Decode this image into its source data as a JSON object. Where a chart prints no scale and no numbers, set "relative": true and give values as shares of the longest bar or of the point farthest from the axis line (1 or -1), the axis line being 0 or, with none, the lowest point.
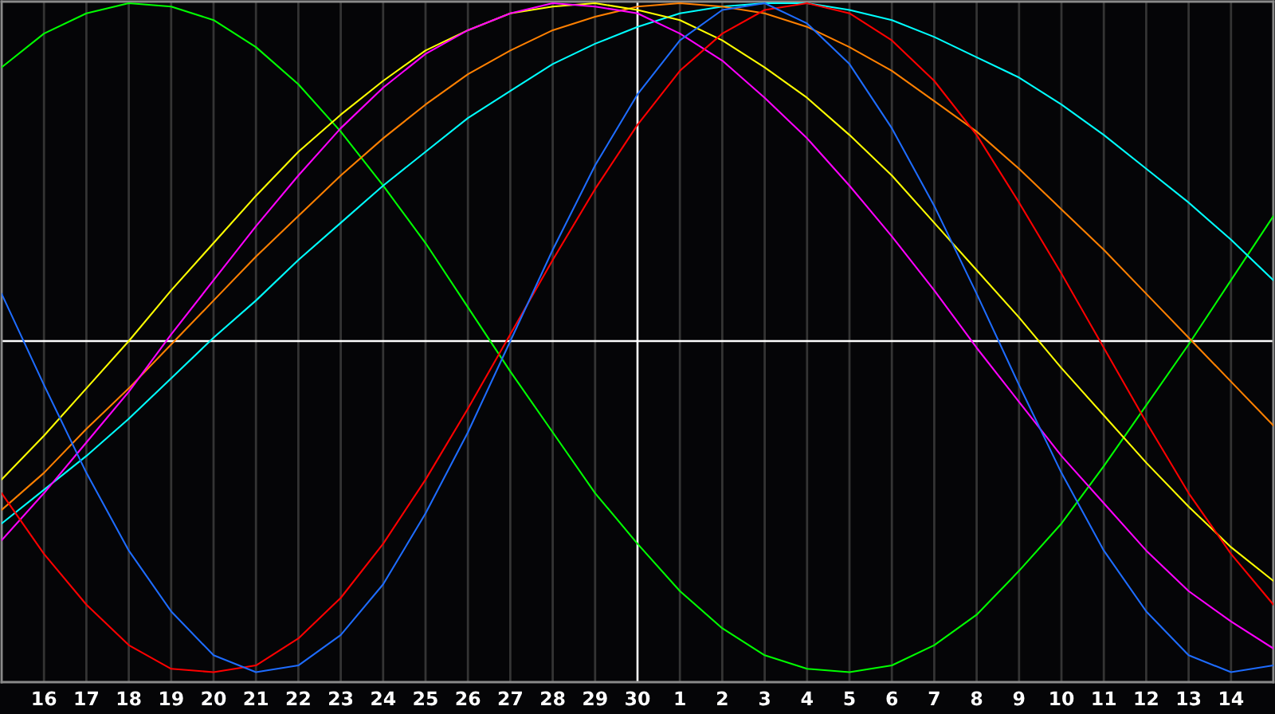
{
  "chart_data": {
    "type": "line",
    "relative": true,
    "grid": "x",
    "categories": [
      null,
      "16",
      "17",
      "18",
      "19",
      "20",
      "21",
      "22",
      "23",
      "24",
      "25",
      "26",
      "27",
      "28",
      "29",
      "30",
      "1",
      "2",
      "3",
      "4",
      "5",
      "6",
      "7",
      "8",
      "9",
      "10",
      "11",
      "12",
      "13",
      "14",
      null
    ],
    "ref_lines": [
      {
        "axis": "y",
        "value": 0,
        "color": "#ffffff"
      },
      {
        "axis": "x",
        "value": "30",
        "color": "#ffffff"
      }
    ],
    "series": [
      {
        "color": "#00ff00",
        "values": [
          0.81,
          0.91,
          0.97,
          1.0,
          0.99,
          0.95,
          0.87,
          0.76,
          0.62,
          0.46,
          0.29,
          0.1,
          -0.09,
          -0.27,
          -0.45,
          -0.6,
          -0.74,
          -0.85,
          -0.93,
          -0.97,
          -0.98,
          -0.96,
          -0.9,
          -0.81,
          -0.68,
          -0.54,
          -0.37,
          -0.19,
          -0.01,
          0.18,
          0.37
        ]
      },
      {
        "color": "#00ffff",
        "values": [
          -0.54,
          -0.44,
          -0.34,
          -0.23,
          -0.11,
          0.01,
          0.12,
          0.24,
          0.35,
          0.46,
          0.56,
          0.66,
          0.74,
          0.82,
          0.88,
          0.93,
          0.97,
          0.99,
          1.0,
          1.0,
          0.98,
          0.95,
          0.9,
          0.84,
          0.78,
          0.7,
          0.61,
          0.51,
          0.41,
          0.3,
          0.18
        ]
      },
      {
        "color": "#ff8000",
        "values": [
          -0.5,
          -0.39,
          -0.26,
          -0.14,
          -0.01,
          0.12,
          0.25,
          0.37,
          0.49,
          0.6,
          0.7,
          0.79,
          0.86,
          0.92,
          0.96,
          0.99,
          1.0,
          0.99,
          0.97,
          0.93,
          0.87,
          0.8,
          0.71,
          0.62,
          0.51,
          0.39,
          0.27,
          0.14,
          0.01,
          -0.12,
          -0.25
        ]
      },
      {
        "color": "#ffff00",
        "values": [
          -0.41,
          -0.28,
          -0.14,
          0.0,
          0.15,
          0.29,
          0.43,
          0.56,
          0.67,
          0.77,
          0.86,
          0.92,
          0.97,
          0.99,
          1.0,
          0.98,
          0.95,
          0.89,
          0.81,
          0.72,
          0.61,
          0.49,
          0.35,
          0.21,
          0.07,
          -0.08,
          -0.22,
          -0.36,
          -0.49,
          -0.61,
          -0.71
        ]
      },
      {
        "color": "#ff00ff",
        "values": [
          -0.59,
          -0.45,
          -0.3,
          -0.15,
          0.02,
          0.18,
          0.34,
          0.49,
          0.63,
          0.75,
          0.85,
          0.92,
          0.97,
          1.0,
          0.99,
          0.97,
          0.91,
          0.83,
          0.72,
          0.6,
          0.46,
          0.31,
          0.15,
          -0.02,
          -0.18,
          -0.34,
          -0.48,
          -0.62,
          -0.74,
          -0.83,
          -0.91
        ]
      },
      {
        "color": "#ff0000",
        "values": [
          -0.45,
          -0.63,
          -0.78,
          -0.9,
          -0.97,
          -0.98,
          -0.96,
          -0.88,
          -0.76,
          -0.6,
          -0.41,
          -0.2,
          0.02,
          0.24,
          0.45,
          0.64,
          0.8,
          0.91,
          0.98,
          1.0,
          0.97,
          0.89,
          0.77,
          0.61,
          0.41,
          0.2,
          -0.02,
          -0.24,
          -0.45,
          -0.63,
          -0.78
        ]
      },
      {
        "color": "#1e6cff",
        "values": [
          0.14,
          -0.13,
          -0.39,
          -0.62,
          -0.8,
          -0.93,
          -0.98,
          -0.96,
          -0.87,
          -0.72,
          -0.51,
          -0.27,
          0.0,
          0.27,
          0.52,
          0.73,
          0.89,
          0.98,
          1.0,
          0.94,
          0.82,
          0.63,
          0.4,
          0.14,
          -0.13,
          -0.39,
          -0.62,
          -0.8,
          -0.93,
          -0.98,
          -0.96
        ]
      }
    ]
  }
}
